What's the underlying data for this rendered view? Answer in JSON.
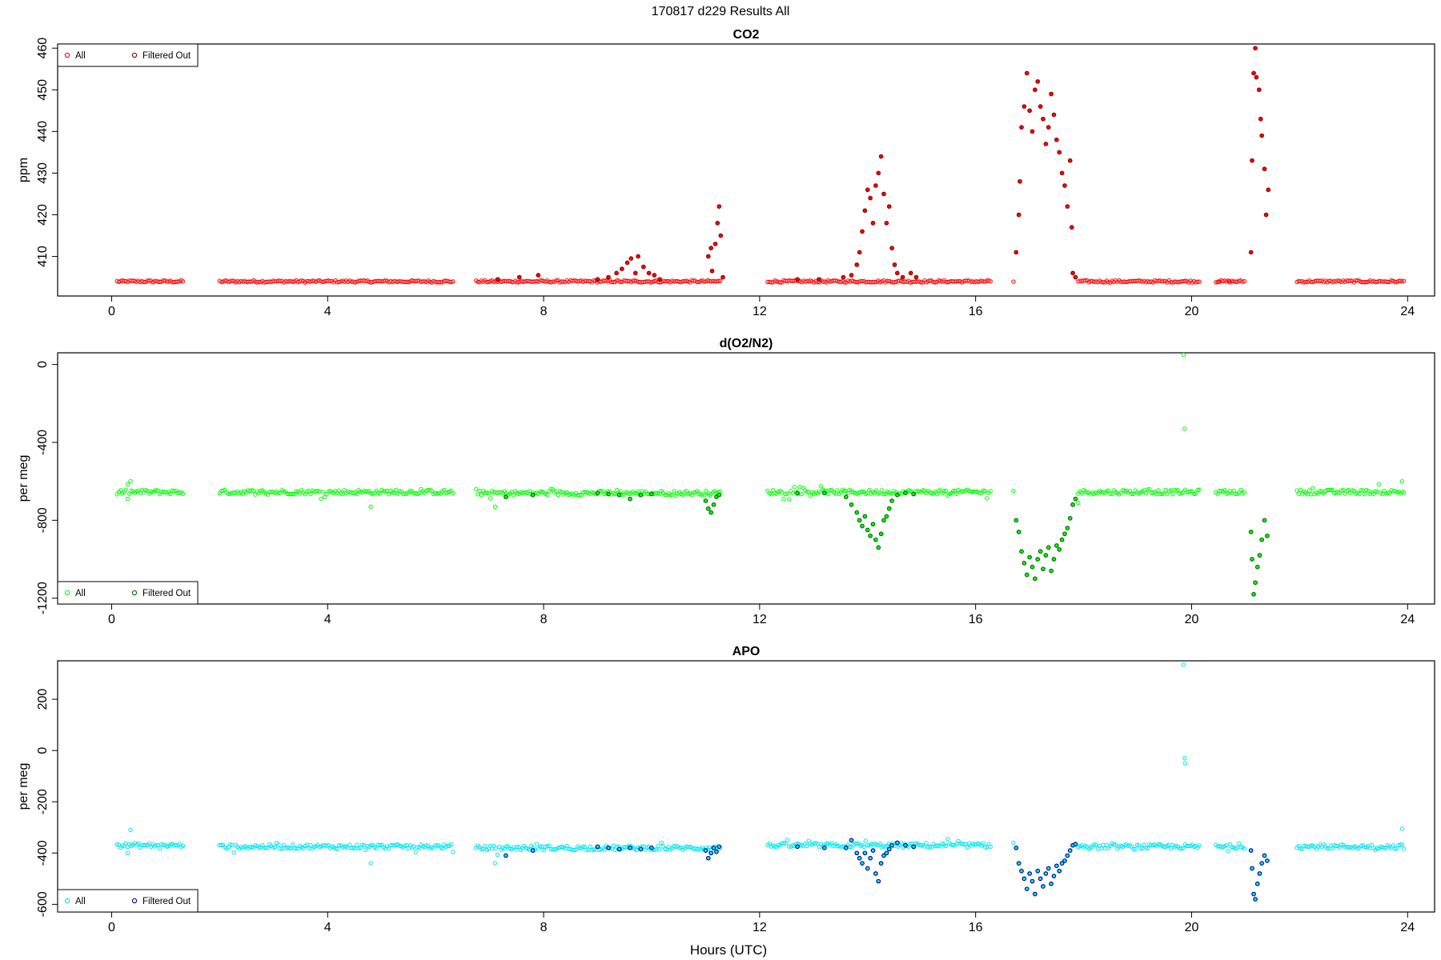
{
  "figure": {
    "title": "170817   d229   Results All",
    "xlabel": "Hours (UTC)"
  },
  "chart_data": [
    {
      "type": "scatter",
      "title": "CO2",
      "xlabel": "Hours (UTC)",
      "ylabel": "ppm",
      "xlim": [
        -1,
        24.5
      ],
      "ylim": [
        400.5,
        461
      ],
      "xticks": [
        0,
        4,
        8,
        12,
        16,
        20,
        24
      ],
      "yticks": [
        410,
        420,
        430,
        440,
        450,
        460
      ],
      "legend": {
        "position": "top-left",
        "entries": [
          "All",
          "Filtered Out"
        ]
      },
      "colors": {
        "all": "#ff0000",
        "filtered": "#8b0000"
      },
      "baseline_segments": [
        {
          "x_start": 0.1,
          "x_end": 1.35,
          "y": 404
        },
        {
          "x_start": 2.0,
          "x_end": 6.35,
          "y": 404
        },
        {
          "x_start": 6.75,
          "x_end": 11.3,
          "y": 404
        },
        {
          "x_start": 12.15,
          "x_end": 16.3,
          "y": 404
        },
        {
          "x_start": 16.7,
          "x_end": 16.72,
          "y": 404
        },
        {
          "x_start": 17.9,
          "x_end": 20.15,
          "y": 404
        },
        {
          "x_start": 20.45,
          "x_end": 21.0,
          "y": 404
        },
        {
          "x_start": 21.95,
          "x_end": 23.95,
          "y": 404
        }
      ],
      "filtered_points": [
        {
          "x": 7.15,
          "y": 404.5
        },
        {
          "x": 7.55,
          "y": 405
        },
        {
          "x": 7.9,
          "y": 405.5
        },
        {
          "x": 9.0,
          "y": 404.5
        },
        {
          "x": 9.2,
          "y": 405
        },
        {
          "x": 9.35,
          "y": 406
        },
        {
          "x": 9.45,
          "y": 407
        },
        {
          "x": 9.55,
          "y": 408.5
        },
        {
          "x": 9.62,
          "y": 409.5
        },
        {
          "x": 9.7,
          "y": 406
        },
        {
          "x": 9.75,
          "y": 410
        },
        {
          "x": 9.85,
          "y": 407.5
        },
        {
          "x": 9.95,
          "y": 406
        },
        {
          "x": 10.05,
          "y": 405.5
        },
        {
          "x": 10.15,
          "y": 404.5
        },
        {
          "x": 11.05,
          "y": 410
        },
        {
          "x": 11.1,
          "y": 412
        },
        {
          "x": 11.12,
          "y": 406.5
        },
        {
          "x": 11.18,
          "y": 413
        },
        {
          "x": 11.22,
          "y": 418
        },
        {
          "x": 11.25,
          "y": 422
        },
        {
          "x": 11.28,
          "y": 415
        },
        {
          "x": 11.32,
          "y": 405
        },
        {
          "x": 12.7,
          "y": 404.5
        },
        {
          "x": 13.1,
          "y": 404.5
        },
        {
          "x": 13.55,
          "y": 405
        },
        {
          "x": 13.7,
          "y": 405.5
        },
        {
          "x": 13.8,
          "y": 408
        },
        {
          "x": 13.85,
          "y": 411
        },
        {
          "x": 13.9,
          "y": 416
        },
        {
          "x": 13.95,
          "y": 421
        },
        {
          "x": 14.0,
          "y": 426
        },
        {
          "x": 14.05,
          "y": 424
        },
        {
          "x": 14.1,
          "y": 418
        },
        {
          "x": 14.15,
          "y": 427
        },
        {
          "x": 14.2,
          "y": 430
        },
        {
          "x": 14.25,
          "y": 434
        },
        {
          "x": 14.3,
          "y": 425
        },
        {
          "x": 14.35,
          "y": 418
        },
        {
          "x": 14.4,
          "y": 422
        },
        {
          "x": 14.45,
          "y": 412
        },
        {
          "x": 14.5,
          "y": 408
        },
        {
          "x": 14.55,
          "y": 406
        },
        {
          "x": 14.65,
          "y": 405
        },
        {
          "x": 14.8,
          "y": 406
        },
        {
          "x": 14.9,
          "y": 405
        },
        {
          "x": 16.75,
          "y": 411
        },
        {
          "x": 16.8,
          "y": 420
        },
        {
          "x": 16.82,
          "y": 428
        },
        {
          "x": 16.85,
          "y": 441
        },
        {
          "x": 16.9,
          "y": 446
        },
        {
          "x": 16.95,
          "y": 454
        },
        {
          "x": 17.0,
          "y": 445
        },
        {
          "x": 17.05,
          "y": 440
        },
        {
          "x": 17.1,
          "y": 450
        },
        {
          "x": 17.15,
          "y": 452
        },
        {
          "x": 17.2,
          "y": 446
        },
        {
          "x": 17.25,
          "y": 443
        },
        {
          "x": 17.3,
          "y": 437
        },
        {
          "x": 17.35,
          "y": 441
        },
        {
          "x": 17.4,
          "y": 449
        },
        {
          "x": 17.45,
          "y": 444
        },
        {
          "x": 17.5,
          "y": 438
        },
        {
          "x": 17.55,
          "y": 435
        },
        {
          "x": 17.6,
          "y": 430
        },
        {
          "x": 17.65,
          "y": 427
        },
        {
          "x": 17.7,
          "y": 422
        },
        {
          "x": 17.75,
          "y": 433
        },
        {
          "x": 17.78,
          "y": 417
        },
        {
          "x": 17.8,
          "y": 406
        },
        {
          "x": 17.85,
          "y": 405
        },
        {
          "x": 21.1,
          "y": 411
        },
        {
          "x": 21.12,
          "y": 433
        },
        {
          "x": 21.15,
          "y": 454
        },
        {
          "x": 21.18,
          "y": 460
        },
        {
          "x": 21.2,
          "y": 453
        },
        {
          "x": 21.25,
          "y": 450
        },
        {
          "x": 21.28,
          "y": 443
        },
        {
          "x": 21.3,
          "y": 439
        },
        {
          "x": 21.35,
          "y": 431
        },
        {
          "x": 21.38,
          "y": 420
        },
        {
          "x": 21.42,
          "y": 426
        }
      ],
      "extra_all_points": [
        {
          "x": 20.5,
          "y": 404
        },
        {
          "x": 20.7,
          "y": 404
        }
      ]
    },
    {
      "type": "scatter",
      "title": "d(O2/N2)",
      "xlabel": "Hours (UTC)",
      "ylabel": "per meg",
      "xlim": [
        -1,
        24.5
      ],
      "ylim": [
        -1230,
        60
      ],
      "xticks": [
        0,
        4,
        8,
        12,
        16,
        20,
        24
      ],
      "yticks": [
        0,
        -400,
        -800,
        -1200
      ],
      "legend": {
        "position": "bottom-left",
        "entries": [
          "All",
          "Filtered Out"
        ]
      },
      "colors": {
        "all": "#00ff00",
        "filtered": "#006400"
      },
      "baseline_segments": [
        {
          "x_start": 0.1,
          "x_end": 1.35,
          "y": -655
        },
        {
          "x_start": 2.0,
          "x_end": 6.35,
          "y": -655
        },
        {
          "x_start": 6.75,
          "x_end": 11.3,
          "y": -660
        },
        {
          "x_start": 12.15,
          "x_end": 16.3,
          "y": -655
        },
        {
          "x_start": 17.9,
          "x_end": 20.15,
          "y": -655
        },
        {
          "x_start": 20.45,
          "x_end": 21.0,
          "y": -655
        },
        {
          "x_start": 21.95,
          "x_end": 23.95,
          "y": -655
        }
      ],
      "filtered_points": [
        {
          "x": 7.3,
          "y": -680
        },
        {
          "x": 7.8,
          "y": -670
        },
        {
          "x": 9.0,
          "y": -660
        },
        {
          "x": 9.2,
          "y": -665
        },
        {
          "x": 9.4,
          "y": -670
        },
        {
          "x": 9.6,
          "y": -690
        },
        {
          "x": 9.8,
          "y": -670
        },
        {
          "x": 10.0,
          "y": -665
        },
        {
          "x": 11.0,
          "y": -700
        },
        {
          "x": 11.05,
          "y": -740
        },
        {
          "x": 11.1,
          "y": -760
        },
        {
          "x": 11.15,
          "y": -720
        },
        {
          "x": 11.2,
          "y": -680
        },
        {
          "x": 11.25,
          "y": -670
        },
        {
          "x": 12.7,
          "y": -660
        },
        {
          "x": 13.2,
          "y": -660
        },
        {
          "x": 13.6,
          "y": -680
        },
        {
          "x": 13.7,
          "y": -720
        },
        {
          "x": 13.8,
          "y": -760
        },
        {
          "x": 13.85,
          "y": -800
        },
        {
          "x": 13.9,
          "y": -830
        },
        {
          "x": 13.95,
          "y": -780
        },
        {
          "x": 14.0,
          "y": -850
        },
        {
          "x": 14.05,
          "y": -880
        },
        {
          "x": 14.1,
          "y": -820
        },
        {
          "x": 14.15,
          "y": -900
        },
        {
          "x": 14.2,
          "y": -940
        },
        {
          "x": 14.25,
          "y": -870
        },
        {
          "x": 14.3,
          "y": -800
        },
        {
          "x": 14.35,
          "y": -780
        },
        {
          "x": 14.4,
          "y": -740
        },
        {
          "x": 14.45,
          "y": -700
        },
        {
          "x": 14.55,
          "y": -670
        },
        {
          "x": 14.7,
          "y": -660
        },
        {
          "x": 14.85,
          "y": -665
        },
        {
          "x": 16.75,
          "y": -800
        },
        {
          "x": 16.8,
          "y": -860
        },
        {
          "x": 16.85,
          "y": -960
        },
        {
          "x": 16.9,
          "y": -1020
        },
        {
          "x": 16.95,
          "y": -1080
        },
        {
          "x": 17.0,
          "y": -990
        },
        {
          "x": 17.05,
          "y": -1040
        },
        {
          "x": 17.1,
          "y": -1100
        },
        {
          "x": 17.15,
          "y": -1000
        },
        {
          "x": 17.2,
          "y": -960
        },
        {
          "x": 17.25,
          "y": -1050
        },
        {
          "x": 17.3,
          "y": -980
        },
        {
          "x": 17.35,
          "y": -940
        },
        {
          "x": 17.4,
          "y": -1060
        },
        {
          "x": 17.45,
          "y": -1000
        },
        {
          "x": 17.5,
          "y": -930
        },
        {
          "x": 17.55,
          "y": -950
        },
        {
          "x": 17.6,
          "y": -900
        },
        {
          "x": 17.65,
          "y": -870
        },
        {
          "x": 17.7,
          "y": -840
        },
        {
          "x": 17.75,
          "y": -790
        },
        {
          "x": 17.8,
          "y": -720
        },
        {
          "x": 17.85,
          "y": -690
        },
        {
          "x": 21.1,
          "y": -860
        },
        {
          "x": 21.12,
          "y": -1000
        },
        {
          "x": 21.15,
          "y": -1180
        },
        {
          "x": 21.18,
          "y": -1120
        },
        {
          "x": 21.22,
          "y": -1040
        },
        {
          "x": 21.26,
          "y": -980
        },
        {
          "x": 21.3,
          "y": -900
        },
        {
          "x": 21.35,
          "y": -800
        },
        {
          "x": 21.4,
          "y": -880
        }
      ],
      "extra_all_points": [
        {
          "x": 0.3,
          "y": -690
        },
        {
          "x": 0.35,
          "y": -600
        },
        {
          "x": 4.8,
          "y": -730
        },
        {
          "x": 7.1,
          "y": -730
        },
        {
          "x": 16.7,
          "y": -650
        },
        {
          "x": 17.9,
          "y": -710
        },
        {
          "x": 19.85,
          "y": 50
        },
        {
          "x": 19.87,
          "y": -330
        },
        {
          "x": 23.9,
          "y": -600
        }
      ]
    },
    {
      "type": "scatter",
      "title": "APO",
      "xlabel": "Hours (UTC)",
      "ylabel": "per meg",
      "xlim": [
        -1,
        24.5
      ],
      "ylim": [
        -630,
        350
      ],
      "xticks": [
        0,
        4,
        8,
        12,
        16,
        20,
        24
      ],
      "yticks": [
        200,
        0,
        -200,
        -400,
        -600
      ],
      "legend": {
        "position": "bottom-left",
        "entries": [
          "All",
          "Filtered Out"
        ]
      },
      "colors": {
        "all": "#00e5ee",
        "filtered": "#00008b"
      },
      "baseline_segments": [
        {
          "x_start": 0.1,
          "x_end": 1.35,
          "y": -370
        },
        {
          "x_start": 2.0,
          "x_end": 6.35,
          "y": -375
        },
        {
          "x_start": 6.75,
          "x_end": 11.3,
          "y": -380
        },
        {
          "x_start": 12.15,
          "x_end": 16.3,
          "y": -370
        },
        {
          "x_start": 17.9,
          "x_end": 20.15,
          "y": -375
        },
        {
          "x_start": 20.45,
          "x_end": 21.0,
          "y": -375
        },
        {
          "x_start": 21.95,
          "x_end": 23.95,
          "y": -375
        }
      ],
      "filtered_points": [
        {
          "x": 7.3,
          "y": -410
        },
        {
          "x": 7.8,
          "y": -390
        },
        {
          "x": 9.0,
          "y": -375
        },
        {
          "x": 9.2,
          "y": -380
        },
        {
          "x": 9.4,
          "y": -385
        },
        {
          "x": 9.6,
          "y": -380
        },
        {
          "x": 9.8,
          "y": -385
        },
        {
          "x": 10.0,
          "y": -380
        },
        {
          "x": 11.0,
          "y": -390
        },
        {
          "x": 11.05,
          "y": -420
        },
        {
          "x": 11.1,
          "y": -400
        },
        {
          "x": 11.15,
          "y": -380
        },
        {
          "x": 11.2,
          "y": -395
        },
        {
          "x": 11.25,
          "y": -375
        },
        {
          "x": 12.7,
          "y": -375
        },
        {
          "x": 13.2,
          "y": -380
        },
        {
          "x": 13.6,
          "y": -380
        },
        {
          "x": 13.7,
          "y": -350
        },
        {
          "x": 13.8,
          "y": -400
        },
        {
          "x": 13.85,
          "y": -420
        },
        {
          "x": 13.9,
          "y": -440
        },
        {
          "x": 13.95,
          "y": -400
        },
        {
          "x": 14.0,
          "y": -460
        },
        {
          "x": 14.05,
          "y": -420
        },
        {
          "x": 14.1,
          "y": -390
        },
        {
          "x": 14.15,
          "y": -480
        },
        {
          "x": 14.2,
          "y": -510
        },
        {
          "x": 14.25,
          "y": -440
        },
        {
          "x": 14.3,
          "y": -410
        },
        {
          "x": 14.35,
          "y": -400
        },
        {
          "x": 14.4,
          "y": -385
        },
        {
          "x": 14.45,
          "y": -370
        },
        {
          "x": 14.55,
          "y": -360
        },
        {
          "x": 14.7,
          "y": -370
        },
        {
          "x": 14.85,
          "y": -375
        },
        {
          "x": 16.75,
          "y": -380
        },
        {
          "x": 16.8,
          "y": -440
        },
        {
          "x": 16.85,
          "y": -470
        },
        {
          "x": 16.9,
          "y": -500
        },
        {
          "x": 16.95,
          "y": -540
        },
        {
          "x": 17.0,
          "y": -480
        },
        {
          "x": 17.05,
          "y": -510
        },
        {
          "x": 17.1,
          "y": -560
        },
        {
          "x": 17.15,
          "y": -470
        },
        {
          "x": 17.2,
          "y": -500
        },
        {
          "x": 17.25,
          "y": -530
        },
        {
          "x": 17.3,
          "y": -480
        },
        {
          "x": 17.35,
          "y": -460
        },
        {
          "x": 17.4,
          "y": -520
        },
        {
          "x": 17.45,
          "y": -490
        },
        {
          "x": 17.5,
          "y": -450
        },
        {
          "x": 17.55,
          "y": -470
        },
        {
          "x": 17.6,
          "y": -440
        },
        {
          "x": 17.65,
          "y": -430
        },
        {
          "x": 17.7,
          "y": -410
        },
        {
          "x": 17.75,
          "y": -390
        },
        {
          "x": 17.8,
          "y": -370
        },
        {
          "x": 17.85,
          "y": -365
        },
        {
          "x": 21.1,
          "y": -390
        },
        {
          "x": 21.12,
          "y": -460
        },
        {
          "x": 21.15,
          "y": -560
        },
        {
          "x": 21.18,
          "y": -580
        },
        {
          "x": 21.22,
          "y": -520
        },
        {
          "x": 21.26,
          "y": -480
        },
        {
          "x": 21.3,
          "y": -440
        },
        {
          "x": 21.35,
          "y": -410
        },
        {
          "x": 21.4,
          "y": -430
        }
      ],
      "extra_all_points": [
        {
          "x": 0.3,
          "y": -400
        },
        {
          "x": 0.35,
          "y": -310
        },
        {
          "x": 4.8,
          "y": -440
        },
        {
          "x": 7.1,
          "y": -440
        },
        {
          "x": 16.7,
          "y": -360
        },
        {
          "x": 19.85,
          "y": 335
        },
        {
          "x": 19.87,
          "y": -30
        },
        {
          "x": 19.88,
          "y": -50
        },
        {
          "x": 23.9,
          "y": -305
        }
      ]
    }
  ]
}
